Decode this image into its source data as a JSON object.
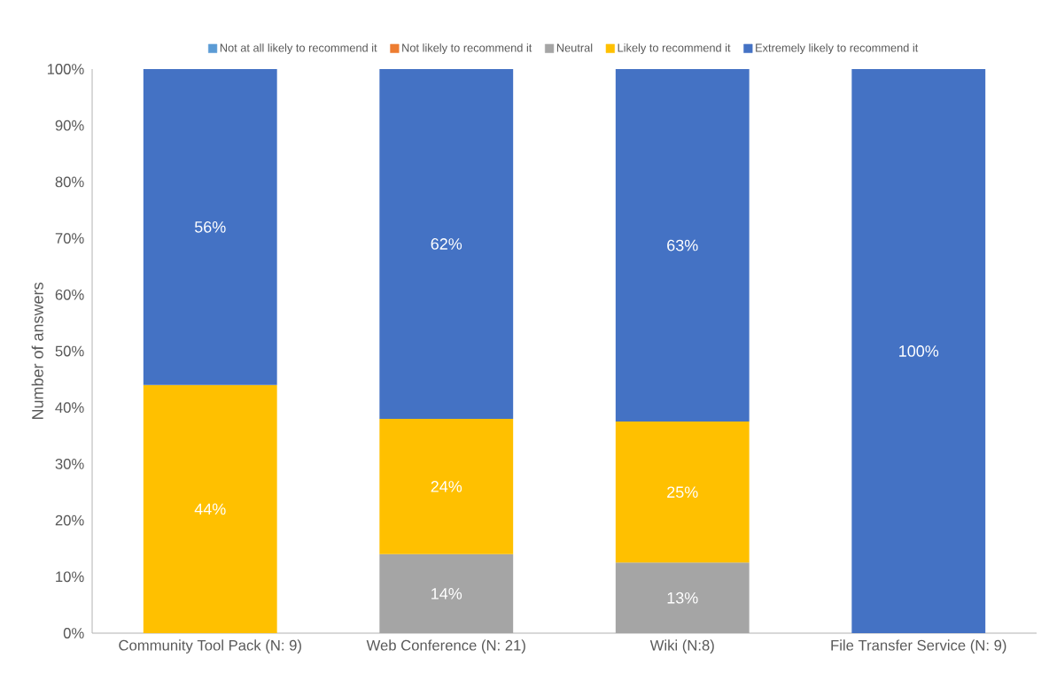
{
  "chart_data": {
    "type": "bar",
    "stacked": true,
    "ylabel": "Number of answers",
    "categories": [
      "Community Tool Pack (N: 9)",
      "Web Conference (N: 21)",
      "Wiki (N:8)",
      "File Transfer Service (N: 9)"
    ],
    "series": [
      {
        "name": "Not at all likely to recommend it",
        "color": "#5b9bd5",
        "values": [
          null,
          null,
          null,
          null
        ]
      },
      {
        "name": "Not likely to recommend it",
        "color": "#ed7d31",
        "values": [
          null,
          null,
          null,
          null
        ]
      },
      {
        "name": "Neutral",
        "color": "#a5a5a5",
        "values": [
          null,
          14,
          12.5,
          null
        ],
        "value_labels": [
          null,
          "14%",
          "13%",
          null
        ]
      },
      {
        "name": "Likely to recommend it",
        "color": "#ffc000",
        "values": [
          44,
          24,
          25,
          null
        ],
        "value_labels": [
          "44%",
          "24%",
          "25%",
          null
        ]
      },
      {
        "name": "Extremely likely to recommend it",
        "color": "#4472c4",
        "values": [
          56,
          62,
          62.5,
          100
        ],
        "value_labels": [
          "56%",
          "62%",
          "63%",
          "100%"
        ]
      }
    ],
    "ylim": [
      0,
      100
    ],
    "yticks": [
      {
        "value": 0,
        "label": "0%"
      },
      {
        "value": 10,
        "label": "10%"
      },
      {
        "value": 20,
        "label": "20%"
      },
      {
        "value": 30,
        "label": "30%"
      },
      {
        "value": 40,
        "label": "40%"
      },
      {
        "value": 50,
        "label": "50%"
      },
      {
        "value": 60,
        "label": "60%"
      },
      {
        "value": 70,
        "label": "70%"
      },
      {
        "value": 80,
        "label": "80%"
      },
      {
        "value": 90,
        "label": "90%"
      },
      {
        "value": 100,
        "label": "100%"
      }
    ],
    "legend": "top"
  }
}
